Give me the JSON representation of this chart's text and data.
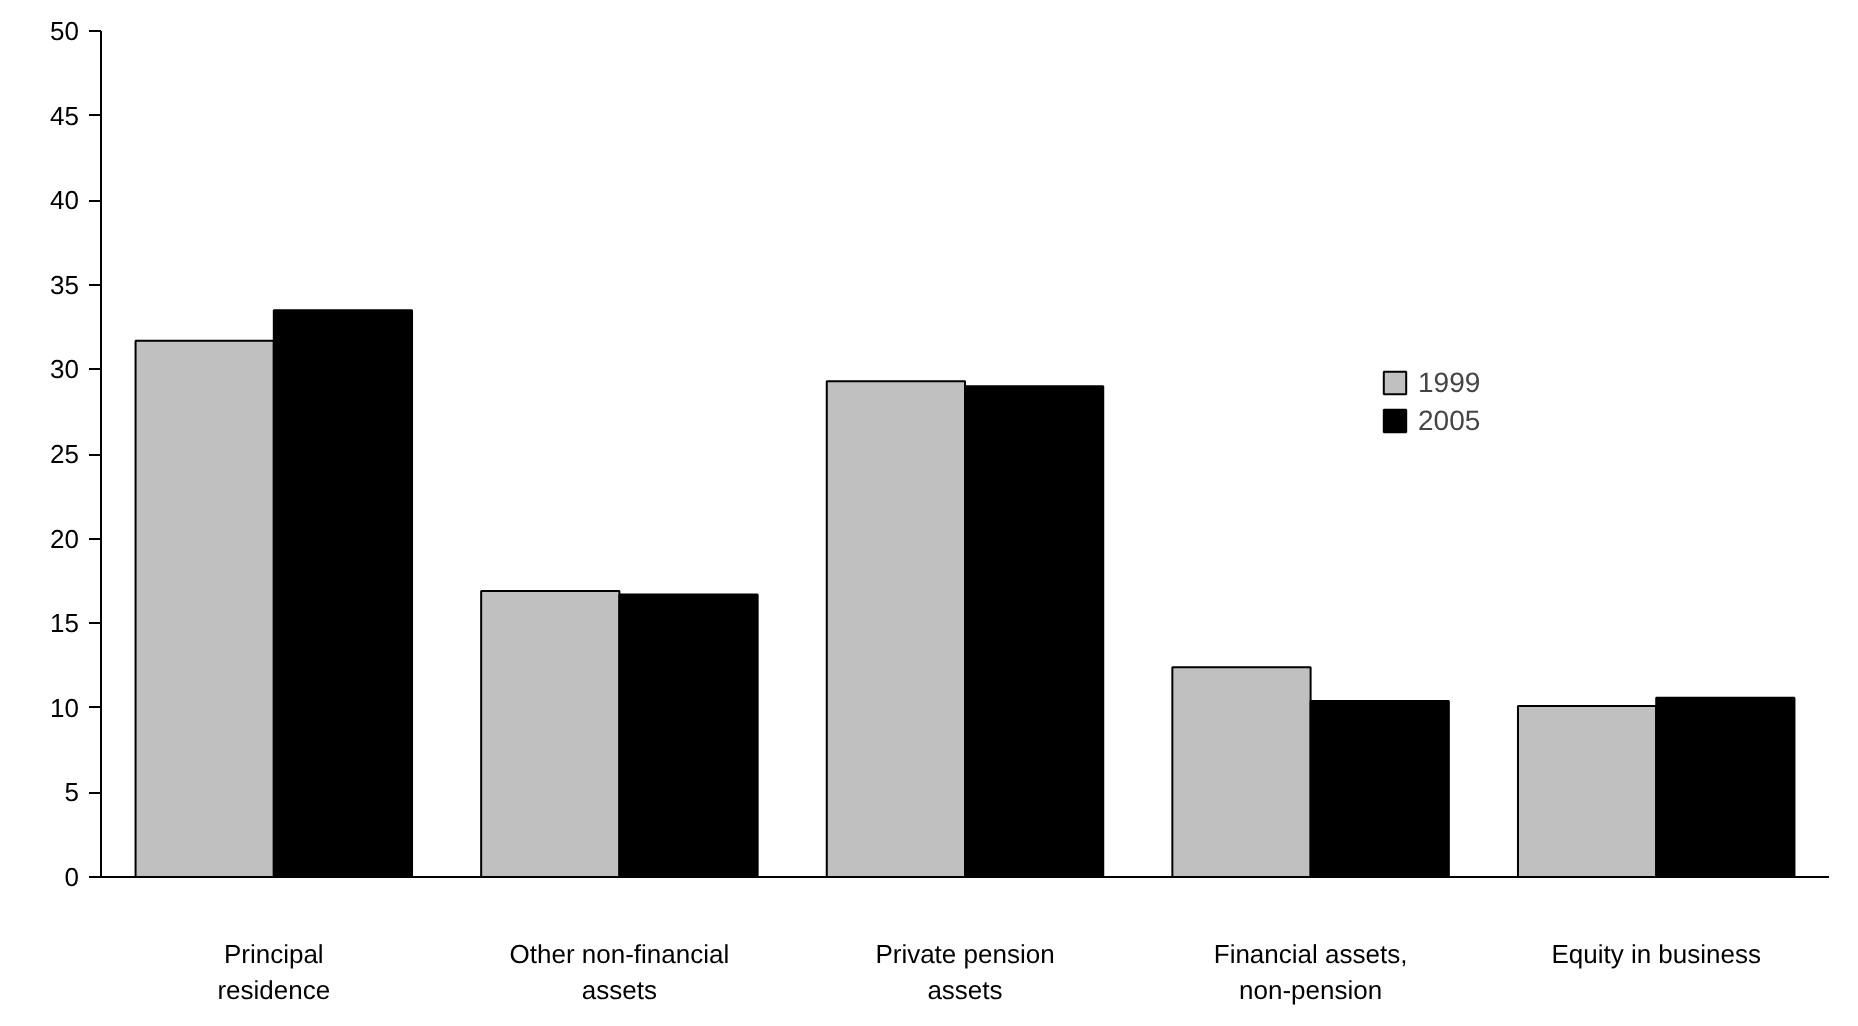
{
  "chart_data": {
    "type": "bar",
    "categories": [
      "Principal residence",
      "Other non-financial assets",
      "Private pension assets",
      "Financial assets, non-pension",
      "Equity in business"
    ],
    "series": [
      {
        "name": "1999",
        "color": "#c0c0c0",
        "values": [
          31.7,
          16.9,
          29.3,
          12.4,
          10.1
        ]
      },
      {
        "name": "2005",
        "color": "#000000",
        "values": [
          33.5,
          16.7,
          29.0,
          10.4,
          10.6
        ]
      }
    ],
    "ylim": [
      0,
      50
    ],
    "yticks": [
      0,
      5,
      10,
      15,
      20,
      25,
      30,
      35,
      40,
      45,
      50
    ],
    "legend": "right",
    "grid": false
  }
}
